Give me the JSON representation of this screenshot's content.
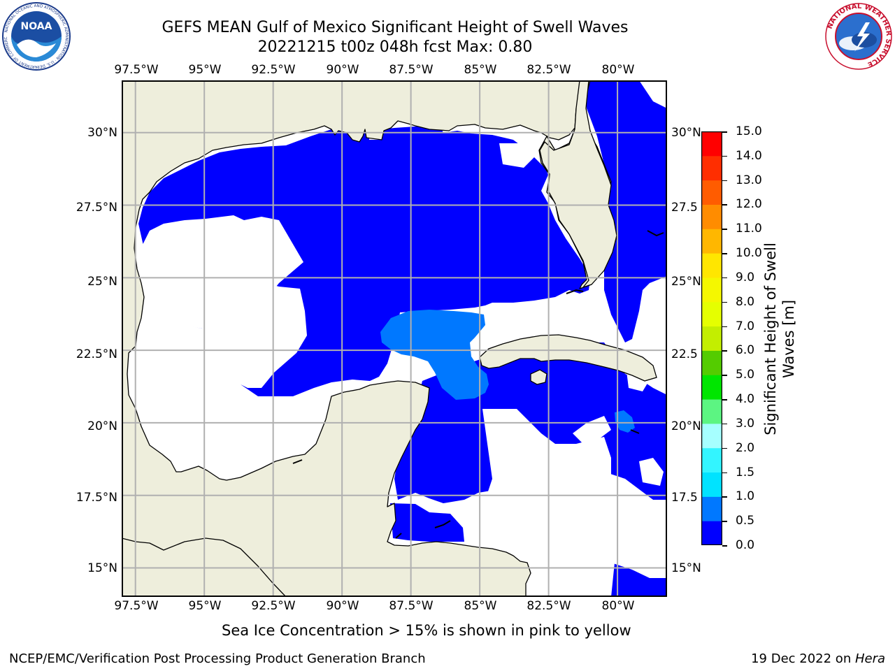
{
  "header": {
    "title_line1": "GEFS MEAN Gulf of Mexico Significant Height of Swell Waves",
    "title_line2": "20221215 t00z 048h fcst   Max: 0.80"
  },
  "logos": {
    "left": {
      "name": "noaa-logo",
      "text": "NOAA",
      "ring_text": "NATIONAL OCEANIC AND ATMOSPHERIC ADMINISTRATION · U.S. DEPARTMENT OF COMMERCE"
    },
    "right": {
      "name": "nws-logo",
      "ring_text": "NATIONAL WEATHER SERVICE"
    }
  },
  "axes": {
    "lon_labels": [
      "97.5°W",
      "95°W",
      "92.5°W",
      "90°W",
      "87.5°W",
      "85°W",
      "82.5°W",
      "80°W"
    ],
    "lat_labels": [
      "30°N",
      "27.5°N",
      "25°N",
      "22.5°N",
      "20°N",
      "17.5°N",
      "15°N"
    ],
    "lat_labels_right": [
      "30°N",
      "27.5",
      "25°N",
      "22.5",
      "20°N",
      "17.5",
      "15°N"
    ],
    "lon_range": [
      -98,
      -78.2
    ],
    "lat_range": [
      14,
      31.8
    ]
  },
  "colorbar": {
    "title_line1": "Significant Height of Swell",
    "title_line2": "Waves [m]",
    "range": [
      0,
      15
    ],
    "tick_labels": [
      "15.0",
      "14.0",
      "13.0",
      "12.0",
      "11.0",
      "10.0",
      "9.0",
      "8.0",
      "7.0",
      "6.0",
      "5.0",
      "4.0",
      "3.0",
      "2.0",
      "1.5",
      "1.0",
      "0.5",
      "0.0"
    ],
    "bins": [
      {
        "range": "0.0-0.5",
        "color": "#0000ff"
      },
      {
        "range": "0.5-1.0",
        "color": "#0078ff"
      },
      {
        "range": "1.0-1.5",
        "color": "#00e3ff"
      },
      {
        "range": "1.5-2.0",
        "color": "#33f5ff"
      },
      {
        "range": "2.0-3.0",
        "color": "#a6ffff"
      },
      {
        "range": "3.0-4.0",
        "color": "#5cf582"
      },
      {
        "range": "4.0-5.0",
        "color": "#00e600"
      },
      {
        "range": "5.0-6.0",
        "color": "#54cc00"
      },
      {
        "range": "6.0-7.0",
        "color": "#c3ee00"
      },
      {
        "range": "7.0-8.0",
        "color": "#e5ff00"
      },
      {
        "range": "8.0-9.0",
        "color": "#f5f700"
      },
      {
        "range": "9.0-10.0",
        "color": "#ffe600"
      },
      {
        "range": "10.0-11.0",
        "color": "#ffb700"
      },
      {
        "range": "11.0-12.0",
        "color": "#ff8c00"
      },
      {
        "range": "12.0-13.0",
        "color": "#ff5c00"
      },
      {
        "range": "13.0-14.0",
        "color": "#ff2e00"
      },
      {
        "range": "14.0-15.0",
        "color": "#ff0000"
      }
    ]
  },
  "map_colors": {
    "land": "#eeeedc",
    "sea_no_data": "#ffffff",
    "swell_0_0_5": "#0000ff",
    "swell_0_5_1_0": "#0078ff",
    "grid": "#b0b0b0",
    "coast": "#000000"
  },
  "footer": {
    "subtitle": "Sea Ice Concentration > 15% is shown in pink to yellow",
    "credit": "NCEP/EMC/Verification Post Processing Product Generation Branch",
    "date_prefix": "19 Dec 2022 on ",
    "host": "Hera"
  }
}
